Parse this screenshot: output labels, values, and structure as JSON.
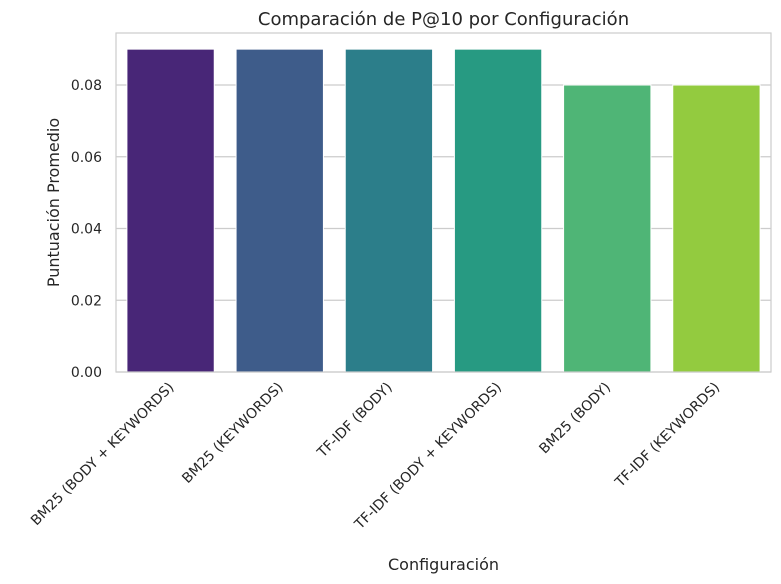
{
  "chart_data": {
    "type": "bar",
    "title": "Comparación de P@10 por Configuración",
    "xlabel": "Configuración",
    "ylabel": "Puntuación Promedio",
    "categories": [
      "BM25 (BODY + KEYWORDS)",
      "BM25 (KEYWORDS)",
      "TF-IDF (BODY)",
      "TF-IDF (BODY + KEYWORDS)",
      "BM25 (BODY)",
      "TF-IDF (KEYWORDS)"
    ],
    "values": [
      0.09,
      0.09,
      0.09,
      0.09,
      0.08,
      0.08
    ],
    "colors": [
      "#482677",
      "#3E5C8A",
      "#2C7E8A",
      "#279A82",
      "#4FB576",
      "#93CB3F"
    ],
    "ylim": [
      0,
      0.0945
    ],
    "yticks": [
      "0.00",
      "0.02",
      "0.04",
      "0.06",
      "0.08"
    ],
    "grid": "horizontal",
    "legend": "none"
  }
}
